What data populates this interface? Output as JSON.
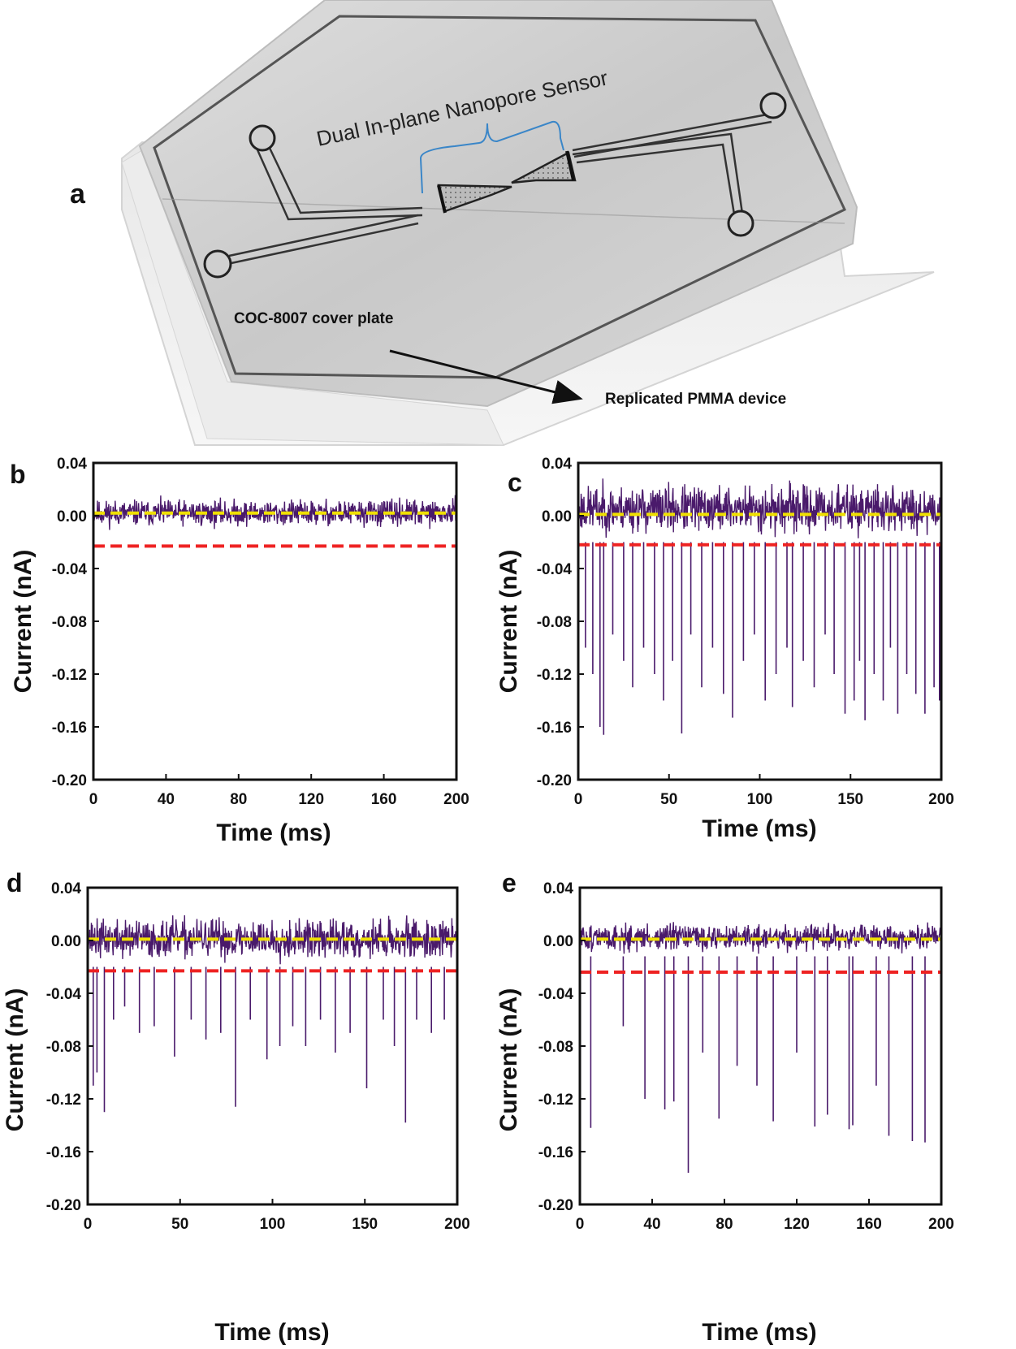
{
  "panel_a": {
    "letter": "a",
    "sensor_label": "Dual In-plane Nanopore Sensor",
    "cover_label": "COC-8007 cover plate",
    "device_label": "Replicated PMMA device",
    "colors": {
      "bracket": "#3a86c8",
      "arrow": "#111111"
    }
  },
  "colors": {
    "trace": "#4a1a6b",
    "baseline": "#f0e000",
    "threshold": "#ee2222"
  },
  "chart_data": [
    {
      "panel": "b",
      "type": "line",
      "xlabel": "Time (ms)",
      "ylabel": "Current (nA)",
      "xlim": [
        0,
        200
      ],
      "ylim": [
        -0.2,
        0.04
      ],
      "xticks": [
        "0",
        "40",
        "80",
        "120",
        "160",
        "200"
      ],
      "yticks": [
        "0.04",
        "0.00",
        "-0.04",
        "-0.08",
        "-0.12",
        "-0.16",
        "-0.20"
      ],
      "baseline": 0.002,
      "threshold": -0.023,
      "noise_band": [
        -0.012,
        0.016
      ],
      "events": []
    },
    {
      "panel": "c",
      "type": "line",
      "xlabel": "Time (ms)",
      "ylabel": "Current (nA)",
      "xlim": [
        0,
        200
      ],
      "ylim": [
        -0.2,
        0.04
      ],
      "xticks": [
        "0",
        "50",
        "100",
        "150",
        "200"
      ],
      "yticks": [
        "0.04",
        "0.00",
        "-0.04",
        "-0.08",
        "-0.12",
        "-0.16",
        "-0.20"
      ],
      "baseline": 0.001,
      "threshold": -0.022,
      "noise_band": [
        -0.02,
        0.03
      ],
      "events": [
        {
          "t": 4,
          "depth": -0.1
        },
        {
          "t": 8,
          "depth": -0.12
        },
        {
          "t": 12,
          "depth": -0.16
        },
        {
          "t": 14,
          "depth": -0.166
        },
        {
          "t": 19,
          "depth": -0.09
        },
        {
          "t": 25,
          "depth": -0.11
        },
        {
          "t": 30,
          "depth": -0.13
        },
        {
          "t": 36,
          "depth": -0.1
        },
        {
          "t": 42,
          "depth": -0.12
        },
        {
          "t": 47,
          "depth": -0.14
        },
        {
          "t": 52,
          "depth": -0.11
        },
        {
          "t": 57,
          "depth": -0.165
        },
        {
          "t": 62,
          "depth": -0.09
        },
        {
          "t": 68,
          "depth": -0.13
        },
        {
          "t": 74,
          "depth": -0.1
        },
        {
          "t": 80,
          "depth": -0.135
        },
        {
          "t": 85,
          "depth": -0.153
        },
        {
          "t": 91,
          "depth": -0.11
        },
        {
          "t": 97,
          "depth": -0.09
        },
        {
          "t": 103,
          "depth": -0.14
        },
        {
          "t": 109,
          "depth": -0.12
        },
        {
          "t": 115,
          "depth": -0.1
        },
        {
          "t": 118,
          "depth": -0.145
        },
        {
          "t": 124,
          "depth": -0.11
        },
        {
          "t": 130,
          "depth": -0.13
        },
        {
          "t": 136,
          "depth": -0.09
        },
        {
          "t": 141,
          "depth": -0.12
        },
        {
          "t": 147,
          "depth": -0.15
        },
        {
          "t": 152,
          "depth": -0.14
        },
        {
          "t": 155,
          "depth": -0.11
        },
        {
          "t": 158,
          "depth": -0.155
        },
        {
          "t": 163,
          "depth": -0.12
        },
        {
          "t": 168,
          "depth": -0.14
        },
        {
          "t": 172,
          "depth": -0.1
        },
        {
          "t": 176,
          "depth": -0.15
        },
        {
          "t": 181,
          "depth": -0.12
        },
        {
          "t": 186,
          "depth": -0.135
        },
        {
          "t": 191,
          "depth": -0.15
        },
        {
          "t": 196,
          "depth": -0.13
        },
        {
          "t": 199,
          "depth": -0.14
        }
      ]
    },
    {
      "panel": "d",
      "type": "line",
      "xlabel": "Time (ms)",
      "ylabel": "Current (nA)",
      "xlim": [
        0,
        200
      ],
      "ylim": [
        -0.2,
        0.04
      ],
      "xticks": [
        "0",
        "50",
        "100",
        "150",
        "200"
      ],
      "yticks": [
        "0.04",
        "0.00",
        "-0.04",
        "-0.08",
        "-0.12",
        "-0.16",
        "-0.20"
      ],
      "baseline": 0.001,
      "threshold": -0.023,
      "noise_band": [
        -0.02,
        0.022
      ],
      "events": [
        {
          "t": 3,
          "depth": -0.11
        },
        {
          "t": 5,
          "depth": -0.1
        },
        {
          "t": 9,
          "depth": -0.13
        },
        {
          "t": 14,
          "depth": -0.06
        },
        {
          "t": 20,
          "depth": -0.05
        },
        {
          "t": 28,
          "depth": -0.07
        },
        {
          "t": 36,
          "depth": -0.065
        },
        {
          "t": 47,
          "depth": -0.088
        },
        {
          "t": 56,
          "depth": -0.06
        },
        {
          "t": 64,
          "depth": -0.075
        },
        {
          "t": 72,
          "depth": -0.07
        },
        {
          "t": 80,
          "depth": -0.126
        },
        {
          "t": 88,
          "depth": -0.06
        },
        {
          "t": 97,
          "depth": -0.09
        },
        {
          "t": 104,
          "depth": -0.08
        },
        {
          "t": 111,
          "depth": -0.065
        },
        {
          "t": 118,
          "depth": -0.08
        },
        {
          "t": 126,
          "depth": -0.06
        },
        {
          "t": 134,
          "depth": -0.085
        },
        {
          "t": 142,
          "depth": -0.07
        },
        {
          "t": 151,
          "depth": -0.112
        },
        {
          "t": 160,
          "depth": -0.06
        },
        {
          "t": 166,
          "depth": -0.08
        },
        {
          "t": 172,
          "depth": -0.138
        },
        {
          "t": 178,
          "depth": -0.06
        },
        {
          "t": 186,
          "depth": -0.07
        },
        {
          "t": 193,
          "depth": -0.06
        }
      ]
    },
    {
      "panel": "e",
      "type": "line",
      "xlabel": "Time (ms)",
      "ylabel": "Current (nA)",
      "xlim": [
        0,
        200
      ],
      "ylim": [
        -0.2,
        0.04
      ],
      "xticks": [
        "0",
        "40",
        "80",
        "120",
        "160",
        "200"
      ],
      "yticks": [
        "0.04",
        "0.00",
        "-0.04",
        "-0.08",
        "-0.12",
        "-0.16",
        "-0.20"
      ],
      "baseline": 0.001,
      "threshold": -0.024,
      "noise_band": [
        -0.012,
        0.016
      ],
      "events": [
        {
          "t": 6,
          "depth": -0.142
        },
        {
          "t": 24,
          "depth": -0.065
        },
        {
          "t": 36,
          "depth": -0.12
        },
        {
          "t": 47,
          "depth": -0.128
        },
        {
          "t": 52,
          "depth": -0.122
        },
        {
          "t": 60,
          "depth": -0.176
        },
        {
          "t": 68,
          "depth": -0.085
        },
        {
          "t": 77,
          "depth": -0.135
        },
        {
          "t": 87,
          "depth": -0.095
        },
        {
          "t": 98,
          "depth": -0.11
        },
        {
          "t": 107,
          "depth": -0.137
        },
        {
          "t": 120,
          "depth": -0.085
        },
        {
          "t": 130,
          "depth": -0.141
        },
        {
          "t": 137,
          "depth": -0.132
        },
        {
          "t": 149,
          "depth": -0.143
        },
        {
          "t": 151,
          "depth": -0.14
        },
        {
          "t": 164,
          "depth": -0.11
        },
        {
          "t": 171,
          "depth": -0.148
        },
        {
          "t": 184,
          "depth": -0.152
        },
        {
          "t": 191,
          "depth": -0.153
        }
      ]
    }
  ]
}
